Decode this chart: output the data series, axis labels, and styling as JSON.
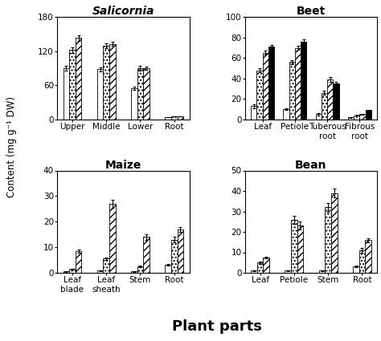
{
  "salicornia": {
    "title": "Salicornia",
    "title_italic": true,
    "categories": [
      "Upper",
      "Middle",
      "Lower",
      "Root"
    ],
    "ylim": [
      0,
      180
    ],
    "yticks": [
      0,
      60,
      120,
      180
    ],
    "series": {
      "CO": [
        90,
        88,
        55,
        4
      ],
      "SA": [
        122,
        130,
        90,
        5
      ],
      "SO": [
        143,
        133,
        90,
        5
      ]
    },
    "errors": {
      "CO": [
        4,
        4,
        3,
        0.3
      ],
      "SA": [
        5,
        4,
        4,
        0.3
      ],
      "SO": [
        5,
        3,
        3,
        0.3
      ]
    }
  },
  "beet": {
    "title": "Beet",
    "title_italic": false,
    "categories": [
      "Leaf",
      "Petiole",
      "Tuberous\nroot",
      "Fibrous\nroot"
    ],
    "ylim": [
      0,
      100
    ],
    "yticks": [
      0,
      20,
      40,
      60,
      80,
      100
    ],
    "series": {
      "CO": [
        13,
        10,
        5,
        2
      ],
      "SA": [
        48,
        56,
        26,
        4
      ],
      "SO": [
        65,
        70,
        39,
        5
      ],
      "HSO": [
        71,
        76,
        35,
        9
      ]
    },
    "errors": {
      "CO": [
        2,
        1,
        1,
        0.3
      ],
      "SA": [
        2,
        2,
        2,
        0.3
      ],
      "SO": [
        2,
        2,
        2,
        0.3
      ],
      "HSO": [
        2,
        2,
        2,
        0.3
      ]
    }
  },
  "maize": {
    "title": "Maize",
    "title_italic": false,
    "categories": [
      "Leaf\nblade",
      "Leaf\nsheath",
      "Stem",
      "Root"
    ],
    "ylim": [
      0,
      40
    ],
    "yticks": [
      0,
      10,
      20,
      30,
      40
    ],
    "series": {
      "CO": [
        0.5,
        0.8,
        0.5,
        3
      ],
      "SA": [
        1.5,
        5.5,
        2.5,
        13
      ],
      "SO": [
        8.5,
        27,
        14,
        17
      ]
    },
    "errors": {
      "CO": [
        0.1,
        0.2,
        0.1,
        0.3
      ],
      "SA": [
        0.2,
        0.5,
        0.3,
        1
      ],
      "SO": [
        0.5,
        1.5,
        1,
        1
      ]
    }
  },
  "bean": {
    "title": "Bean",
    "title_italic": false,
    "categories": [
      "Leaf",
      "Petiole",
      "Stem",
      "Root"
    ],
    "ylim": [
      0,
      50
    ],
    "yticks": [
      0,
      10,
      20,
      30,
      40,
      50
    ],
    "series": {
      "CO": [
        1,
        1,
        1,
        3
      ],
      "SA": [
        5,
        26,
        32,
        11
      ],
      "SO": [
        7.5,
        23,
        39,
        16
      ]
    },
    "errors": {
      "CO": [
        0.2,
        0.2,
        0.2,
        0.4
      ],
      "SA": [
        0.5,
        2,
        2,
        1
      ],
      "SO": [
        0.5,
        2,
        2,
        1
      ]
    }
  },
  "bar_styles": {
    "CO": {
      "facecolor": "white",
      "hatch": "",
      "edgecolor": "black"
    },
    "SA": {
      "facecolor": "white",
      "hatch": "....",
      "edgecolor": "black"
    },
    "SO": {
      "facecolor": "white",
      "hatch": "////",
      "edgecolor": "black"
    },
    "HSO": {
      "facecolor": "black",
      "hatch": "",
      "edgecolor": "black"
    }
  },
  "bar_width": 0.18,
  "ylabel": "Content (mg g⁻¹ DW)",
  "xlabel": "Plant parts",
  "xlabel_fontsize": 13,
  "ylabel_fontsize": 8.5,
  "title_fontsize": 10,
  "tick_labelsize": 7.5
}
